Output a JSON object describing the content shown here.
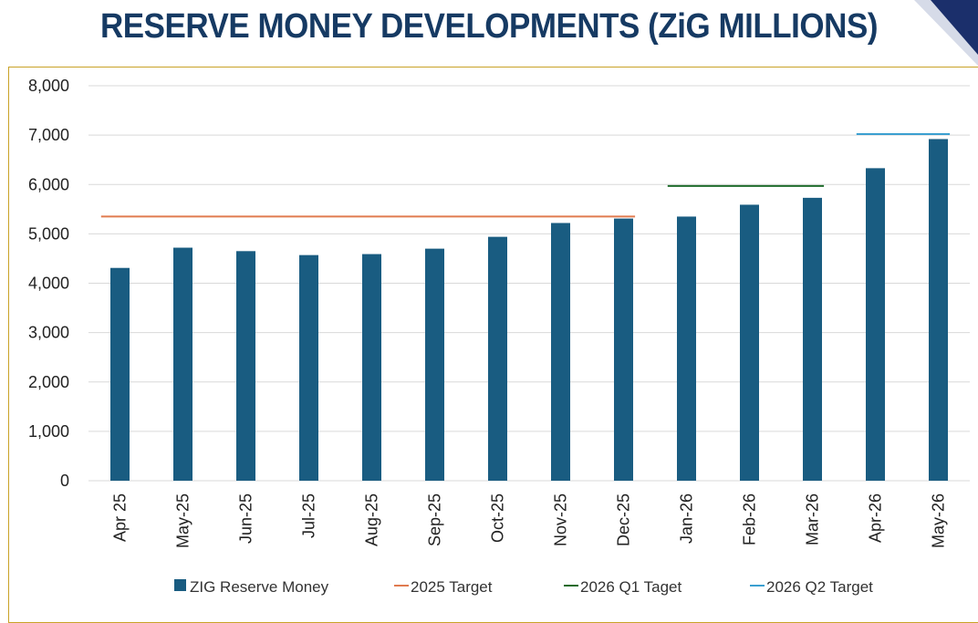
{
  "title": "RESERVE MONEY DEVELOPMENTS (ZiG MILLIONS)",
  "colors": {
    "bar": "#195c81",
    "target_2025": "#e07b4f",
    "target_2026_q1": "#1e6b2b",
    "target_2026_q2": "#3a9fd0",
    "title": "#163a63",
    "frame": "#c9a227",
    "grid": "#d9d9d9"
  },
  "chart_data": {
    "type": "bar",
    "categories": [
      "Apr 25",
      "May-25",
      "Jun-25",
      "Jul-25",
      "Aug-25",
      "Sep-25",
      "Oct-25",
      "Nov-25",
      "Dec-25",
      "Jan-26",
      "Feb-26",
      "Mar-26",
      "Apr-26",
      "May-26"
    ],
    "series": [
      {
        "name": "ZIG Reserve Money",
        "type": "bar",
        "values": [
          4310,
          4720,
          4650,
          4570,
          4590,
          4700,
          4940,
          5220,
          5310,
          5350,
          5590,
          5730,
          6330,
          6920
        ]
      }
    ],
    "targets": [
      {
        "name": "2025 Target",
        "value": 5350,
        "from": "Apr 25",
        "to": "Dec-25"
      },
      {
        "name": "2026 Q1 Taget",
        "value": 5970,
        "from": "Jan-26",
        "to": "Mar-26"
      },
      {
        "name": "2026 Q2 Target",
        "value": 7020,
        "from": "Apr-26",
        "to": "May-26"
      }
    ],
    "yticks": [
      "0",
      "1,000",
      "2,000",
      "3,000",
      "4,000",
      "5,000",
      "6,000",
      "7,000",
      "8,000"
    ],
    "ylim": [
      0,
      8000
    ],
    "grid": true,
    "legend_position": "bottom"
  }
}
